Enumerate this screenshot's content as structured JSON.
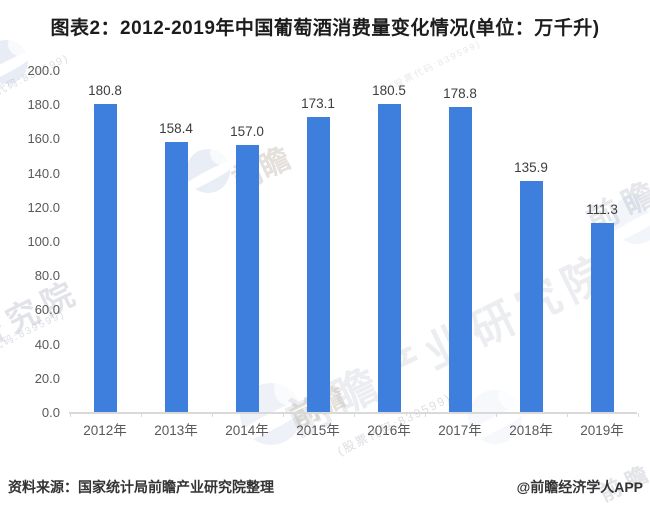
{
  "title": "图表2：2012-2019年中国葡萄酒消费量变化情况(单位：万千升)",
  "chart_data": {
    "type": "bar",
    "categories": [
      "2012年",
      "2013年",
      "2014年",
      "2015年",
      "2016年",
      "2017年",
      "2018年",
      "2019年"
    ],
    "values": [
      180.8,
      158.4,
      157.0,
      173.1,
      180.5,
      178.8,
      135.9,
      111.3
    ],
    "title": "图表2：2012-2019年中国葡萄酒消费量变化情况(单位：万千升)",
    "xlabel": "",
    "ylabel": "",
    "unit": "万千升",
    "ylim": [
      0,
      200
    ],
    "ytick_step": 20,
    "grid": false,
    "legend": "none",
    "value_labels": true,
    "bar_color": "#3E7EDC"
  },
  "y_axis": {
    "tick_labels": [
      "0.0",
      "20.0",
      "40.0",
      "60.0",
      "80.0",
      "100.0",
      "120.0",
      "140.0",
      "160.0",
      "180.0",
      "200.0"
    ]
  },
  "footer": {
    "source": "资料来源：国家统计局前瞻产业研究院整理",
    "credit": "@前瞻经济学人APP"
  },
  "watermark": {
    "text": "前瞻产业研究院",
    "brand": "前瞻",
    "subtext": "(股票代码:839599)"
  },
  "colors": {
    "bar": "#3E7EDC",
    "axis_line": "#D9D9D9",
    "tick_label": "#595959",
    "value_label": "#3D3D3D",
    "title": "#1C1C1C",
    "footer": "#333333"
  }
}
